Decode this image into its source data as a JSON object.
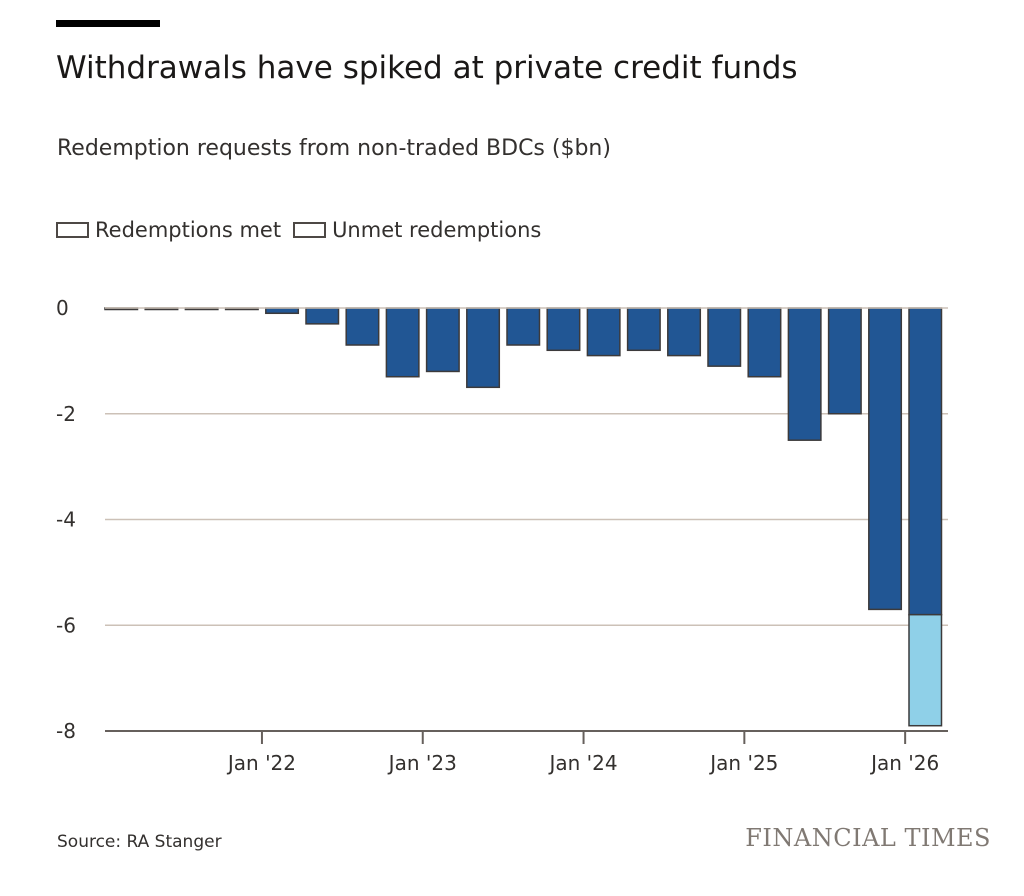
{
  "chart_data": {
    "type": "bar",
    "title": "Withdrawals have spiked at private credit funds",
    "subtitle": "Redemption requests from non-traded BDCs ($bn)",
    "stacked": true,
    "legend_position": "top-left",
    "grid": true,
    "ylim": [
      -8,
      0
    ],
    "y_ticks": [
      0,
      -2,
      -4,
      -6,
      -8
    ],
    "y_tick_labels": [
      "0",
      "-2",
      "-4",
      "-6",
      "-8"
    ],
    "x_tick_labels": [
      "Jan '22",
      "Jan '23",
      "Jan '24",
      "Jan '25",
      "Jan '26"
    ],
    "x_tick_after_bar": [
      3,
      7,
      11,
      15,
      19
    ],
    "series": [
      {
        "name": "Redemptions met",
        "color": "#215694",
        "values": [
          -0.02,
          -0.02,
          -0.02,
          -0.02,
          -0.1,
          -0.3,
          -0.7,
          -1.3,
          -1.2,
          -1.5,
          -0.7,
          -0.8,
          -0.9,
          -0.8,
          -0.9,
          -1.1,
          -1.3,
          -2.5,
          -2.0,
          -5.7,
          -5.8
        ]
      },
      {
        "name": "Unmet redemptions",
        "color": "#8fd0e8",
        "values": [
          0,
          0,
          0,
          0,
          0,
          0,
          0,
          0,
          0,
          0,
          0,
          0,
          0,
          0,
          0,
          0,
          0,
          0,
          0,
          0,
          -2.1
        ]
      }
    ]
  },
  "footer": {
    "source": "Source: RA Stanger",
    "logo": "FINANCIAL TIMES"
  }
}
